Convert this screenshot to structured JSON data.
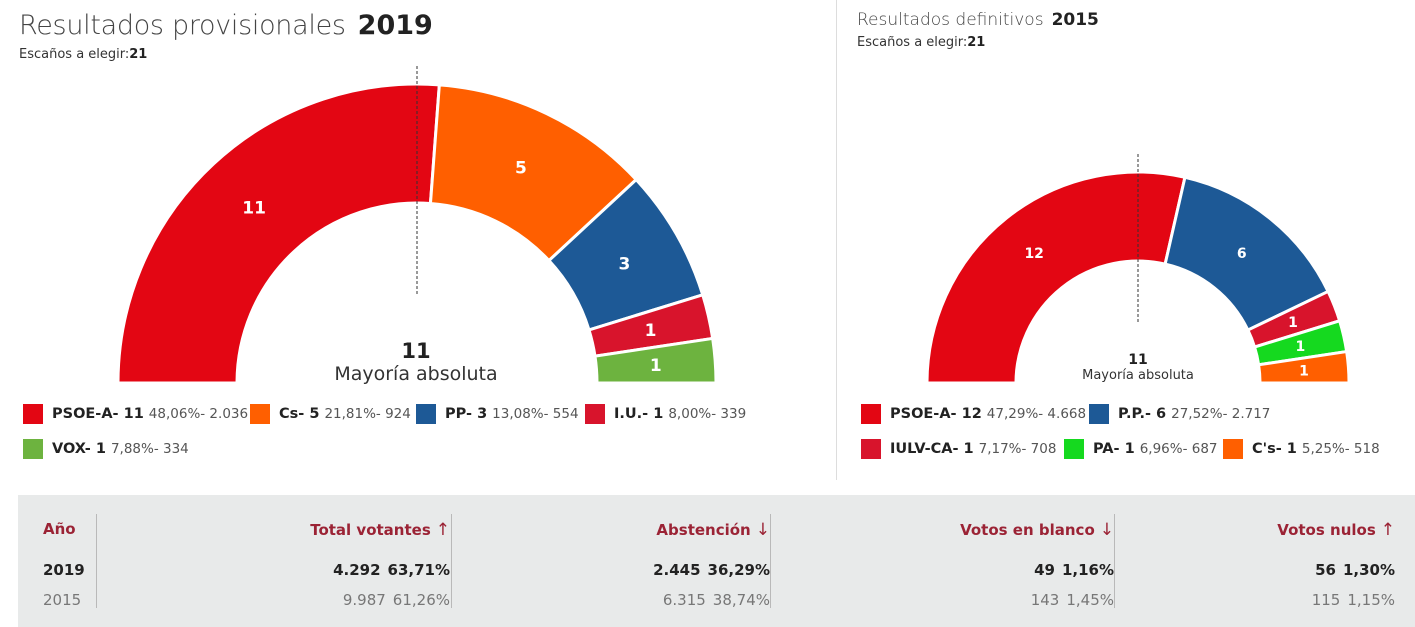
{
  "left": {
    "title": "Resultados provisionales",
    "year": "2019",
    "seats_label": "Escaños a elegir:",
    "seats_total": "21",
    "majority_seats": "11",
    "majority_label": "Mayoría absoluta"
  },
  "right": {
    "title": "Resultados definitivos",
    "year": "2015",
    "seats_label": "Escaños a elegir:",
    "seats_total": "21",
    "majority_seats": "11",
    "majority_label": "Mayoría absoluta"
  },
  "chart_data": [
    {
      "type": "pie",
      "title": "Resultados provisionales 2019",
      "subtype": "parliament-hemicycle",
      "total_seats": 21,
      "series": [
        {
          "name": "PSOE-A",
          "seats": 11,
          "percent": "48,06%",
          "votes": "2.036",
          "color": "#e30613"
        },
        {
          "name": "Cs",
          "seats": 5,
          "percent": "21,81%",
          "votes": "924",
          "color": "#ff5f00"
        },
        {
          "name": "PP",
          "seats": 3,
          "percent": "13,08%",
          "votes": "554",
          "color": "#1d5996"
        },
        {
          "name": "I.U.",
          "seats": 1,
          "percent": "8,00%",
          "votes": "339",
          "color": "#d8142c"
        },
        {
          "name": "VOX",
          "seats": 1,
          "percent": "7,88%",
          "votes": "334",
          "color": "#6db33f"
        }
      ]
    },
    {
      "type": "pie",
      "title": "Resultados definitivos 2015",
      "subtype": "parliament-hemicycle",
      "total_seats": 21,
      "series": [
        {
          "name": "PSOE-A",
          "seats": 12,
          "percent": "47,29%",
          "votes": "4.668",
          "color": "#e30613"
        },
        {
          "name": "P.P.",
          "seats": 6,
          "percent": "27,52%",
          "votes": "2.717",
          "color": "#1d5996"
        },
        {
          "name": "IULV-CA",
          "seats": 1,
          "percent": "7,17%",
          "votes": "708",
          "color": "#d8142c"
        },
        {
          "name": "PA",
          "seats": 1,
          "percent": "6,96%",
          "votes": "687",
          "color": "#15d91f"
        },
        {
          "name": "C's",
          "seats": 1,
          "percent": "5,25%",
          "votes": "518",
          "color": "#ff5f00"
        }
      ]
    }
  ],
  "stats": {
    "columns": [
      {
        "header": "Año",
        "arrow": "",
        "v2019": "2019",
        "p2019": "",
        "v2015": "2015",
        "p2015": ""
      },
      {
        "header": "Total votantes",
        "arrow": "↑",
        "v2019": "4.292",
        "p2019": "63,71%",
        "v2015": "9.987",
        "p2015": "61,26%"
      },
      {
        "header": "Abstención",
        "arrow": "↓",
        "v2019": "2.445",
        "p2019": "36,29%",
        "v2015": "6.315",
        "p2015": "38,74%"
      },
      {
        "header": "Votos en blanco",
        "arrow": "↓",
        "v2019": "49",
        "p2019": "1,16%",
        "v2015": "143",
        "p2015": "1,45%"
      },
      {
        "header": "Votos nulos",
        "arrow": "↑",
        "v2019": "56",
        "p2019": "1,30%",
        "v2015": "115",
        "p2015": "1,15%"
      }
    ]
  }
}
